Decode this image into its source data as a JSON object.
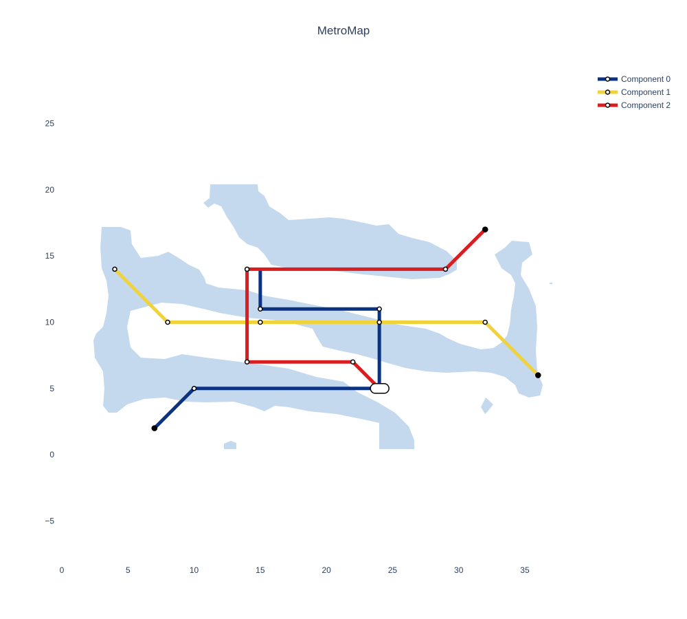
{
  "chart_data": {
    "type": "line",
    "title": "MetroMap",
    "xlim": [
      0,
      37
    ],
    "ylim": [
      -9,
      27
    ],
    "x_ticks": [
      "0",
      "5",
      "10",
      "15",
      "20",
      "25",
      "30",
      "35"
    ],
    "y_ticks": [
      "25",
      "20",
      "15",
      "10",
      "5",
      "0",
      "−5"
    ],
    "x_tick_values": [
      0,
      5,
      10,
      15,
      20,
      25,
      30,
      35
    ],
    "y_tick_values": [
      25,
      20,
      15,
      10,
      5,
      0,
      -5
    ],
    "grid": false,
    "legend_position": "top-right",
    "background_shape_color": "#c5d9ee",
    "series": [
      {
        "name": "Component 0",
        "color": "#0c3382",
        "points": [
          [
            7,
            2
          ],
          [
            10,
            5
          ],
          [
            24,
            5
          ],
          [
            24,
            11
          ],
          [
            15,
            11
          ],
          [
            15,
            14
          ]
        ],
        "end_stations": [
          [
            7,
            2
          ]
        ],
        "stations": [
          [
            10,
            5
          ],
          [
            24,
            11
          ],
          [
            15,
            11
          ]
        ]
      },
      {
        "name": "Component 1",
        "color": "#f0d23b",
        "points": [
          [
            4,
            14
          ],
          [
            8,
            10
          ],
          [
            32,
            10
          ],
          [
            36,
            6
          ]
        ],
        "end_stations": [
          [
            36,
            6
          ]
        ],
        "stations": [
          [
            4,
            14
          ],
          [
            8,
            10
          ],
          [
            15,
            10
          ],
          [
            24,
            10
          ],
          [
            32,
            10
          ]
        ]
      },
      {
        "name": "Component 2",
        "color": "#d81e20",
        "points": [
          [
            32,
            17
          ],
          [
            29,
            14
          ],
          [
            14,
            14
          ],
          [
            14,
            7
          ],
          [
            22,
            7
          ],
          [
            24,
            5
          ]
        ],
        "end_stations": [
          [
            32,
            17
          ]
        ],
        "stations": [
          [
            29,
            14
          ],
          [
            14,
            14
          ],
          [
            14,
            7
          ],
          [
            22,
            7
          ]
        ]
      }
    ],
    "interchange": [
      24,
      5
    ]
  }
}
